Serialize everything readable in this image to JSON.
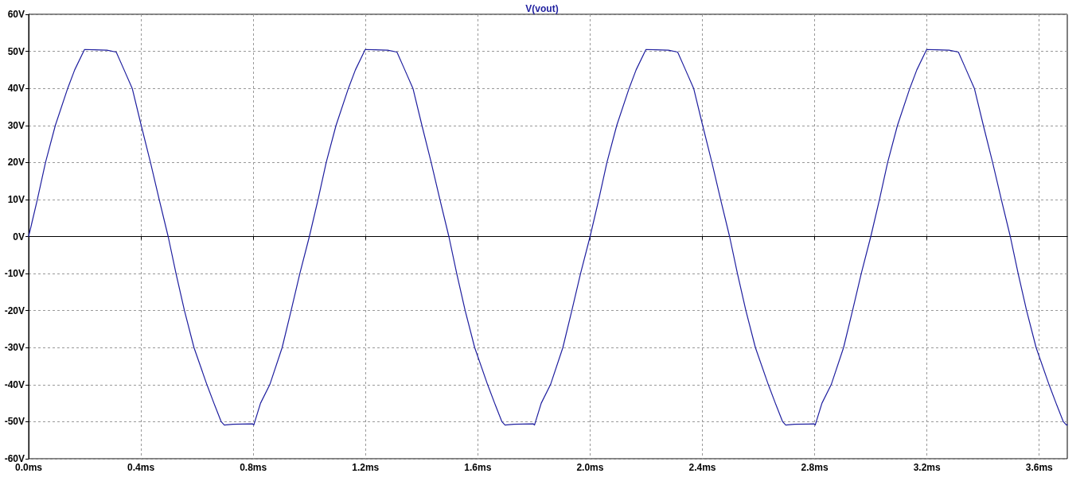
{
  "chart_data": {
    "type": "line",
    "title": "V(vout)",
    "xlim": [
      0,
      3.7
    ],
    "xticks": [
      {
        "value": 0,
        "label": "0.0ms"
      },
      {
        "value": 0.4,
        "label": "0.4ms"
      },
      {
        "value": 0.8,
        "label": "0.8ms"
      },
      {
        "value": 1.2,
        "label": "1.2ms"
      },
      {
        "value": 1.6,
        "label": "1.6ms"
      },
      {
        "value": 2.0,
        "label": "2.0ms"
      },
      {
        "value": 2.4,
        "label": "2.4ms"
      },
      {
        "value": 2.8,
        "label": "2.8ms"
      },
      {
        "value": 3.2,
        "label": "3.2ms"
      },
      {
        "value": 3.6,
        "label": "3.6ms"
      }
    ],
    "ylim": [
      -60,
      60
    ],
    "yticks": [
      {
        "value": -60,
        "label": "-60V"
      },
      {
        "value": -50,
        "label": "-50V"
      },
      {
        "value": -40,
        "label": "-40V"
      },
      {
        "value": -30,
        "label": "-30V"
      },
      {
        "value": -20,
        "label": "-20V"
      },
      {
        "value": -10,
        "label": "-10V"
      },
      {
        "value": 0,
        "label": "0V"
      },
      {
        "value": 10,
        "label": "10V"
      },
      {
        "value": 20,
        "label": "20V"
      },
      {
        "value": 30,
        "label": "30V"
      },
      {
        "value": 40,
        "label": "40V"
      },
      {
        "value": 50,
        "label": "50V"
      },
      {
        "value": 60,
        "label": "60V"
      }
    ],
    "grid": true,
    "marker": "none",
    "line_style": "solid",
    "series": [
      {
        "color": "#1f1f9f",
        "x": [
          0,
          0.031,
          0.06,
          0.095,
          0.139,
          0.164,
          0.199,
          0.235,
          0.279,
          0.312,
          0.34,
          0.369,
          0.401,
          0.434,
          0.465,
          0.497,
          0.525,
          0.555,
          0.589,
          0.635,
          0.66,
          0.686,
          0.697,
          0.728,
          0.798,
          0.802,
          0.826,
          0.859,
          0.903,
          0.935,
          0.966,
          1,
          1.031,
          1.06,
          1.095,
          1.139,
          1.164,
          1.199,
          1.235,
          1.279,
          1.312,
          1.34,
          1.369,
          1.401,
          1.434,
          1.465,
          1.497,
          1.525,
          1.555,
          1.589,
          1.635,
          1.66,
          1.686,
          1.697,
          1.728,
          1.798,
          1.802,
          1.826,
          1.859,
          1.903,
          1.935,
          1.966,
          2,
          2.031,
          2.06,
          2.095,
          2.139,
          2.164,
          2.199,
          2.235,
          2.279,
          2.312,
          2.34,
          2.369,
          2.401,
          2.434,
          2.465,
          2.497,
          2.525,
          2.555,
          2.589,
          2.635,
          2.66,
          2.686,
          2.697,
          2.728,
          2.798,
          2.802,
          2.826,
          2.859,
          2.903,
          2.935,
          2.966,
          3,
          3.031,
          3.06,
          3.095,
          3.139,
          3.164,
          3.199,
          3.235,
          3.279,
          3.312,
          3.34,
          3.369,
          3.401,
          3.434,
          3.465,
          3.497,
          3.525,
          3.555,
          3.589,
          3.635,
          3.66,
          3.686,
          3.697,
          3.7
        ],
        "values": [
          0,
          10,
          20,
          30,
          40,
          45,
          50.5,
          50.4,
          50.3,
          49.8,
          45,
          40,
          30,
          20,
          10,
          0,
          -10,
          -20,
          -30,
          -40,
          -45,
          -50,
          -50.9,
          -50.7,
          -50.6,
          -50.9,
          -45,
          -40,
          -30,
          -20,
          -10,
          0,
          10,
          20,
          30,
          40,
          45,
          50.5,
          50.4,
          50.3,
          49.8,
          45,
          40,
          30,
          20,
          10,
          0,
          -10,
          -20,
          -30,
          -40,
          -45,
          -50,
          -50.9,
          -50.7,
          -50.6,
          -50.9,
          -45,
          -40,
          -30,
          -20,
          -10,
          0,
          10,
          20,
          30,
          40,
          45,
          50.5,
          50.4,
          50.3,
          49.8,
          45,
          40,
          30,
          20,
          10,
          0,
          -10,
          -20,
          -30,
          -40,
          -45,
          -50,
          -50.9,
          -50.7,
          -50.6,
          -50.9,
          -45,
          -40,
          -30,
          -20,
          -10,
          0,
          10,
          20,
          30,
          40,
          45,
          50.5,
          50.4,
          50.3,
          49.8,
          45,
          40,
          30,
          20,
          10,
          0,
          -10,
          -20,
          -30,
          -40,
          -45,
          -50,
          -50.9,
          -50.8
        ]
      }
    ]
  }
}
